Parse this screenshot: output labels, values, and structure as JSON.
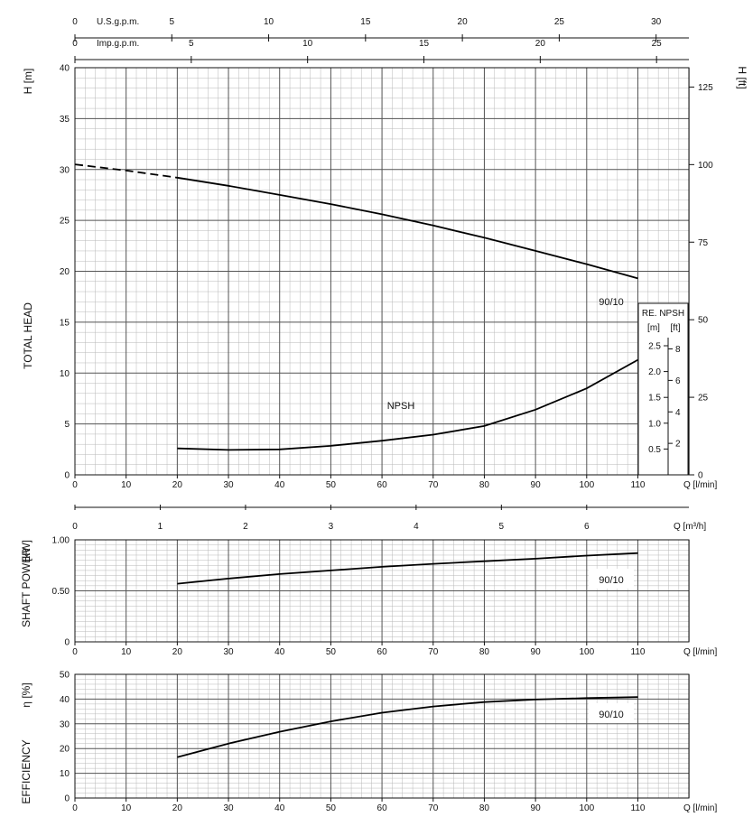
{
  "chart_data": [
    {
      "id": "head",
      "type": "line",
      "xlabel": "Q [l/min]",
      "ylabel": "TOTAL HEAD",
      "ylabel_unit": "H [m]",
      "ylabel_right": "H [ft]",
      "xlim": [
        0,
        120
      ],
      "ylim": [
        0,
        40
      ],
      "x_ticks": [
        0,
        10,
        20,
        30,
        40,
        50,
        60,
        70,
        80,
        90,
        100,
        110
      ],
      "y_ticks": [
        0,
        5,
        10,
        15,
        20,
        25,
        30,
        35,
        40
      ],
      "y_ticks_right": [
        0,
        25,
        50,
        75,
        100,
        125
      ],
      "top_axes": [
        {
          "label": "U.S.g.p.m.",
          "ticks": [
            0,
            5,
            10,
            15,
            20,
            25,
            30
          ]
        },
        {
          "label": "Imp.g.p.m.",
          "ticks": [
            0,
            5,
            10,
            15,
            20,
            25
          ]
        }
      ],
      "bottom_axis2": {
        "label": "Q [m³/h]",
        "ticks": [
          0,
          1,
          2,
          3,
          4,
          5,
          6
        ]
      },
      "series": [
        {
          "name": "90/10",
          "x": [
            0,
            10,
            20
          ],
          "y": [
            30.5,
            29.9,
            29.2
          ],
          "style": "dashed"
        },
        {
          "name": "90/10",
          "x": [
            20,
            30,
            40,
            50,
            60,
            70,
            80,
            90,
            100,
            110
          ],
          "y": [
            29.2,
            28.4,
            27.5,
            26.6,
            25.6,
            24.5,
            23.3,
            22.0,
            20.7,
            19.3
          ]
        },
        {
          "name": "NPSH",
          "x": [
            20,
            30,
            40,
            50,
            60,
            70,
            80,
            90,
            100,
            110
          ],
          "y": [
            2.6,
            2.45,
            2.5,
            2.85,
            3.35,
            3.95,
            4.8,
            6.4,
            8.5,
            11.3
          ]
        }
      ],
      "annotations": [
        "90/10",
        "NPSH"
      ],
      "inset_axis": {
        "title": "RE. NPSH",
        "left_unit": "[m]",
        "right_unit": "[ft]",
        "left_ticks": [
          "0.5",
          "1.0",
          "1.5",
          "2.0",
          "2.5"
        ],
        "right_ticks": [
          "2",
          "4",
          "6",
          "8"
        ]
      }
    },
    {
      "id": "power",
      "type": "line",
      "xlabel": "Q [l/min]",
      "ylabel": "SHAFT POWER",
      "ylabel_unit": "[kW]",
      "xlim": [
        0,
        120
      ],
      "ylim": [
        0,
        1.0
      ],
      "x_ticks": [
        0,
        10,
        20,
        30,
        40,
        50,
        60,
        70,
        80,
        90,
        100,
        110
      ],
      "y_ticks": [
        "0",
        "0.50",
        "1.00"
      ],
      "series": [
        {
          "name": "90/10",
          "x": [
            20,
            30,
            40,
            50,
            60,
            70,
            80,
            90,
            100,
            110
          ],
          "y": [
            0.57,
            0.62,
            0.665,
            0.7,
            0.735,
            0.765,
            0.79,
            0.815,
            0.845,
            0.87
          ]
        }
      ],
      "annotations": [
        "90/10"
      ]
    },
    {
      "id": "efficiency",
      "type": "line",
      "xlabel": "Q [l/min]",
      "ylabel": "EFFICIENCY",
      "ylabel_unit": "η [%]",
      "xlim": [
        0,
        120
      ],
      "ylim": [
        0,
        50
      ],
      "x_ticks": [
        0,
        10,
        20,
        30,
        40,
        50,
        60,
        70,
        80,
        90,
        100,
        110
      ],
      "y_ticks": [
        0,
        10,
        20,
        30,
        40,
        50
      ],
      "series": [
        {
          "name": "90/10",
          "x": [
            20,
            30,
            40,
            50,
            60,
            70,
            80,
            90,
            100,
            110
          ],
          "y": [
            16.5,
            22.0,
            26.8,
            31.0,
            34.5,
            37.0,
            38.8,
            39.8,
            40.4,
            40.8
          ]
        }
      ],
      "annotations": [
        "90/10"
      ]
    }
  ]
}
